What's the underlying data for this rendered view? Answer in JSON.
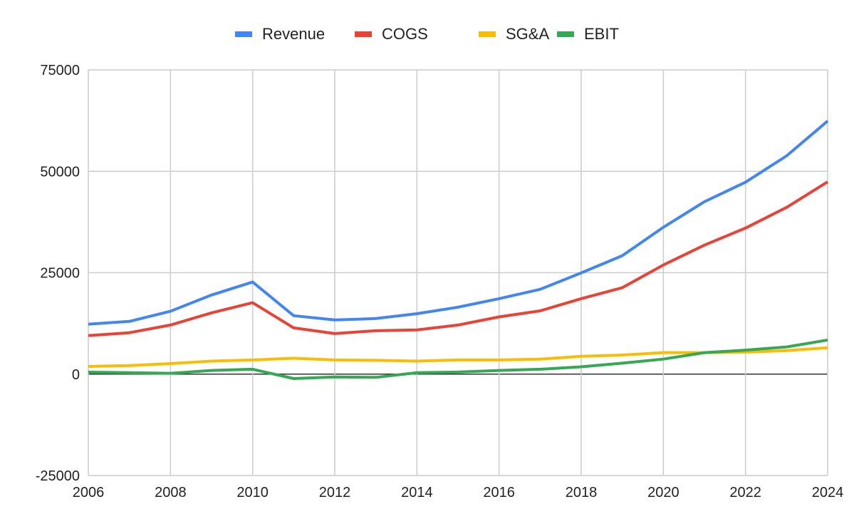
{
  "chart_data": {
    "type": "line",
    "title": "",
    "xlabel": "",
    "ylabel": "",
    "x": [
      2006,
      2007,
      2008,
      2009,
      2010,
      2011,
      2012,
      2013,
      2014,
      2015,
      2016,
      2017,
      2018,
      2019,
      2020,
      2021,
      2022,
      2023,
      2024
    ],
    "xlim": [
      2006,
      2024
    ],
    "ylim": [
      -25000,
      75000
    ],
    "x_ticks": [
      "2006",
      "2008",
      "2010",
      "2012",
      "2014",
      "2016",
      "2018",
      "2020",
      "2022",
      "2024"
    ],
    "y_ticks": [
      "75000",
      "50000",
      "25000",
      "0",
      "-25000"
    ],
    "grid": true,
    "legend_position": "top",
    "series": [
      {
        "name": "Revenue",
        "color": "#4285f4",
        "values": [
          12300,
          13000,
          15500,
          19500,
          22700,
          14400,
          13350,
          13700,
          14900,
          16500,
          18600,
          20900,
          24950,
          29200,
          36200,
          42500,
          47300,
          53800,
          62400
        ]
      },
      {
        "name": "COGS",
        "color": "#ea4335",
        "values": [
          9500,
          10200,
          12100,
          15100,
          17600,
          11400,
          10000,
          10700,
          10900,
          12100,
          14100,
          15600,
          18600,
          21300,
          26900,
          31800,
          36000,
          41100,
          47400
        ]
      },
      {
        "name": "SG&A",
        "color": "#fbbc04",
        "values": [
          1900,
          2100,
          2600,
          3200,
          3500,
          3900,
          3500,
          3400,
          3200,
          3500,
          3500,
          3700,
          4400,
          4700,
          5300,
          5300,
          5400,
          5800,
          6500
        ]
      },
      {
        "name": "EBIT",
        "color": "#34a853",
        "values": [
          500,
          350,
          200,
          900,
          1200,
          -1100,
          -700,
          -800,
          350,
          500,
          900,
          1200,
          1800,
          2700,
          3700,
          5300,
          5900,
          6700,
          8400
        ]
      }
    ]
  }
}
